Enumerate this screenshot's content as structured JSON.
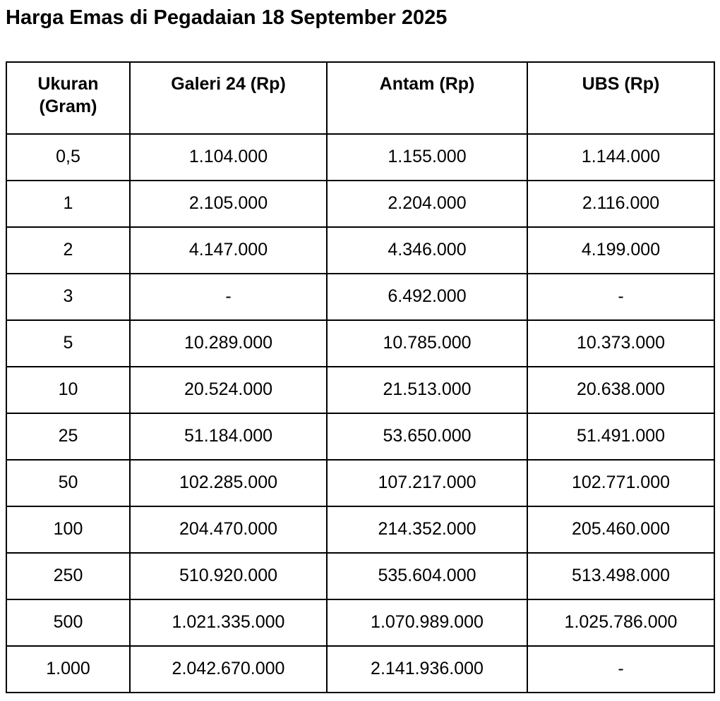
{
  "title": "Harga Emas di Pegadaian 18 September 2025",
  "colors": {
    "text": "#000000",
    "border": "#000000",
    "background": "#ffffff"
  },
  "chart_data": {
    "type": "table",
    "title": "Harga Emas di Pegadaian 18 September 2025",
    "columns": [
      "Ukuran (Gram)",
      "Galeri 24 (Rp)",
      "Antam (Rp)",
      "UBS (Rp)"
    ],
    "rows": [
      [
        "0,5",
        "1.104.000",
        "1.155.000",
        "1.144.000"
      ],
      [
        "1",
        "2.105.000",
        "2.204.000",
        "2.116.000"
      ],
      [
        "2",
        "4.147.000",
        "4.346.000",
        "4.199.000"
      ],
      [
        "3",
        "-",
        "6.492.000",
        "-"
      ],
      [
        "5",
        "10.289.000",
        "10.785.000",
        "10.373.000"
      ],
      [
        "10",
        "20.524.000",
        "21.513.000",
        "20.638.000"
      ],
      [
        "25",
        "51.184.000",
        "53.650.000",
        "51.491.000"
      ],
      [
        "50",
        "102.285.000",
        "107.217.000",
        "102.771.000"
      ],
      [
        "100",
        "204.470.000",
        "214.352.000",
        "205.460.000"
      ],
      [
        "250",
        "510.920.000",
        "535.604.000",
        "513.498.000"
      ],
      [
        "500",
        "1.021.335.000",
        "1.070.989.000",
        "1.025.786.000"
      ],
      [
        "1.000",
        "2.042.670.000",
        "2.141.936.000",
        "-"
      ]
    ]
  }
}
